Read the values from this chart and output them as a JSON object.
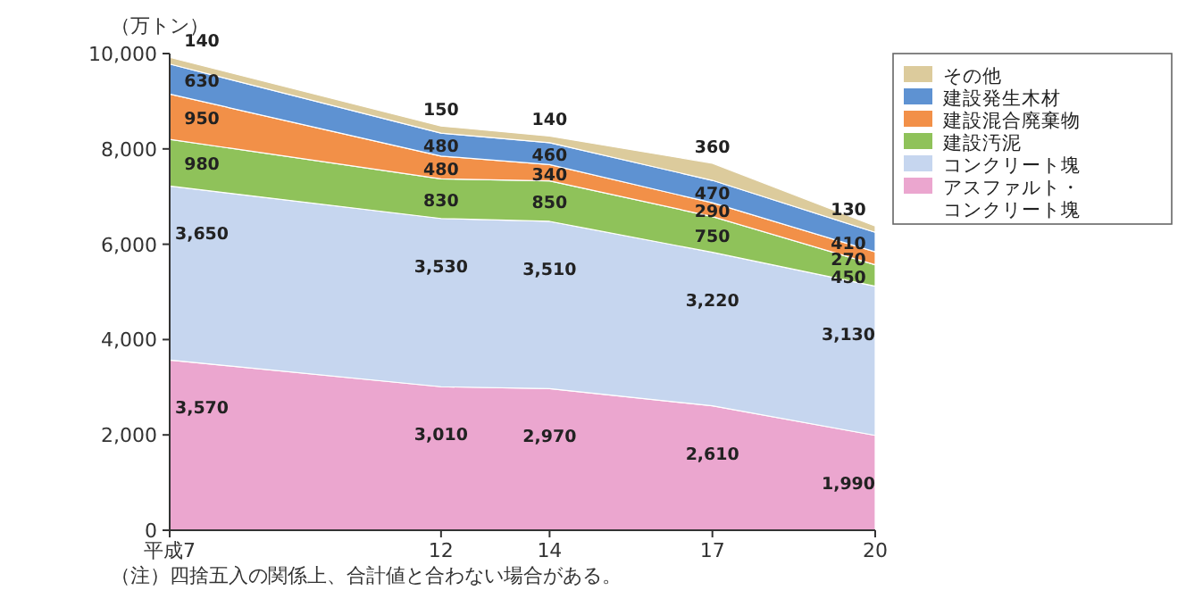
{
  "chart_data": {
    "type": "area",
    "stacked": true,
    "ylabel": "（万トン）",
    "x": [
      7,
      12,
      14,
      17,
      20
    ],
    "xlim": [
      7,
      20
    ],
    "xticks": [
      {
        "value": 7,
        "label": "平成7"
      },
      12,
      14,
      17,
      20
    ],
    "ylim": [
      0,
      10000
    ],
    "yticks": [
      0,
      {
        "value": 2000,
        "label": "2,000"
      },
      {
        "value": 4000,
        "label": "4,000"
      },
      {
        "value": 6000,
        "label": "6,000"
      },
      {
        "value": 8000,
        "label": "8,000"
      },
      {
        "value": 10000,
        "label": "10,000"
      }
    ],
    "series": [
      {
        "name": "アスファルト・コンクリート塊",
        "color": "#eba6cf",
        "values": [
          3570,
          3010,
          2970,
          2610,
          1990
        ],
        "value_labels": [
          "3,570",
          "3,010",
          "2,970",
          "2,610",
          "1,990"
        ]
      },
      {
        "name": "コンクリート塊",
        "color": "#c6d6ef",
        "values": [
          3650,
          3530,
          3510,
          3220,
          3130
        ],
        "value_labels": [
          "3,650",
          "3,530",
          "3,510",
          "3,220",
          "3,130"
        ]
      },
      {
        "name": "建設汚泥",
        "color": "#8fc25a",
        "values": [
          980,
          830,
          850,
          750,
          450
        ],
        "value_labels": [
          "980",
          "830",
          "850",
          "750",
          "450"
        ]
      },
      {
        "name": "建設混合廃棄物",
        "color": "#f29048",
        "values": [
          950,
          480,
          340,
          290,
          270
        ],
        "value_labels": [
          "950",
          "480",
          "340",
          "290",
          "270"
        ]
      },
      {
        "name": "建設発生木材",
        "color": "#5e92d2",
        "values": [
          630,
          480,
          460,
          470,
          410
        ],
        "value_labels": [
          "630",
          "480",
          "460",
          "470",
          "410"
        ]
      },
      {
        "name": "その他",
        "color": "#dccb9c",
        "values": [
          140,
          150,
          140,
          360,
          130
        ],
        "value_labels": [
          "140",
          "150",
          "140",
          "360",
          "130"
        ]
      }
    ],
    "legend": "right",
    "annotations": [
      "（注）四捨五入の関係上、合計値と合わない場合がある。"
    ]
  }
}
